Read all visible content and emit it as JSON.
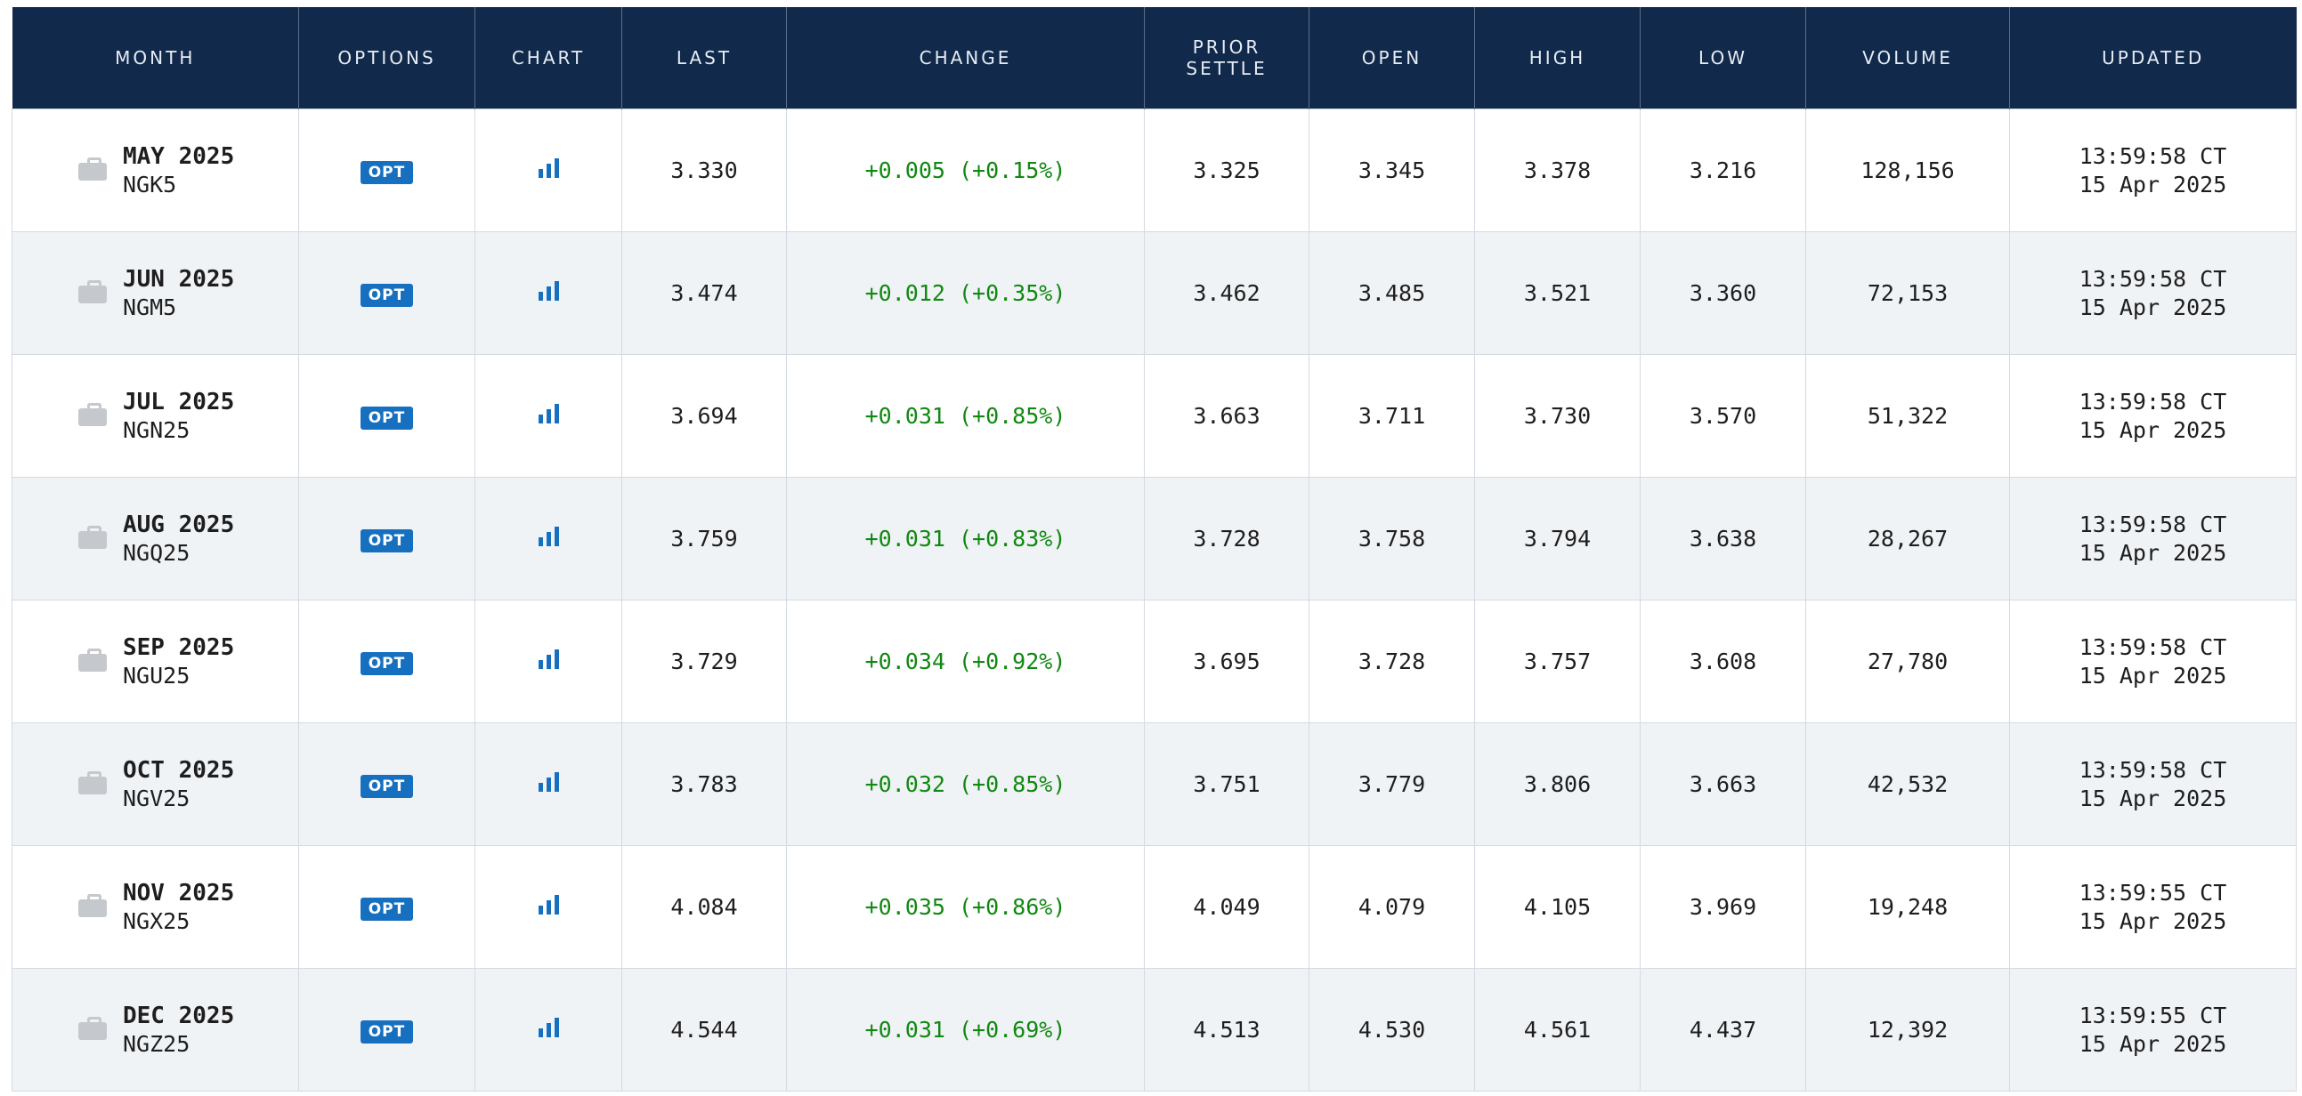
{
  "columns": {
    "month": "MONTH",
    "options": "OPTIONS",
    "chart": "CHART",
    "last": "LAST",
    "change": "CHANGE",
    "prior_settle_line1": "PRIOR",
    "prior_settle_line2": "SETTLE",
    "open": "OPEN",
    "high": "HIGH",
    "low": "LOW",
    "volume": "VOLUME",
    "updated": "UPDATED"
  },
  "icons": {
    "month": "briefcase-icon",
    "chart": "bar-chart-icon"
  },
  "colors": {
    "header_bg": "#11294a",
    "change_positive": "#118811",
    "badge_bg": "#1770bf",
    "row_alt_bg": "#f0f3f6"
  },
  "rows": [
    {
      "month": "MAY 2025",
      "code": "NGK5",
      "options": "OPT",
      "last": "3.330",
      "change": "+0.005 (+0.15%)",
      "prior_settle": "3.325",
      "open": "3.345",
      "high": "3.378",
      "low": "3.216",
      "volume": "128,156",
      "updated_time": "13:59:58 CT",
      "updated_date": "15 Apr 2025"
    },
    {
      "month": "JUN 2025",
      "code": "NGM5",
      "options": "OPT",
      "last": "3.474",
      "change": "+0.012 (+0.35%)",
      "prior_settle": "3.462",
      "open": "3.485",
      "high": "3.521",
      "low": "3.360",
      "volume": "72,153",
      "updated_time": "13:59:58 CT",
      "updated_date": "15 Apr 2025"
    },
    {
      "month": "JUL 2025",
      "code": "NGN25",
      "options": "OPT",
      "last": "3.694",
      "change": "+0.031 (+0.85%)",
      "prior_settle": "3.663",
      "open": "3.711",
      "high": "3.730",
      "low": "3.570",
      "volume": "51,322",
      "updated_time": "13:59:58 CT",
      "updated_date": "15 Apr 2025"
    },
    {
      "month": "AUG 2025",
      "code": "NGQ25",
      "options": "OPT",
      "last": "3.759",
      "change": "+0.031 (+0.83%)",
      "prior_settle": "3.728",
      "open": "3.758",
      "high": "3.794",
      "low": "3.638",
      "volume": "28,267",
      "updated_time": "13:59:58 CT",
      "updated_date": "15 Apr 2025"
    },
    {
      "month": "SEP 2025",
      "code": "NGU25",
      "options": "OPT",
      "last": "3.729",
      "change": "+0.034 (+0.92%)",
      "prior_settle": "3.695",
      "open": "3.728",
      "high": "3.757",
      "low": "3.608",
      "volume": "27,780",
      "updated_time": "13:59:58 CT",
      "updated_date": "15 Apr 2025"
    },
    {
      "month": "OCT 2025",
      "code": "NGV25",
      "options": "OPT",
      "last": "3.783",
      "change": "+0.032 (+0.85%)",
      "prior_settle": "3.751",
      "open": "3.779",
      "high": "3.806",
      "low": "3.663",
      "volume": "42,532",
      "updated_time": "13:59:58 CT",
      "updated_date": "15 Apr 2025"
    },
    {
      "month": "NOV 2025",
      "code": "NGX25",
      "options": "OPT",
      "last": "4.084",
      "change": "+0.035 (+0.86%)",
      "prior_settle": "4.049",
      "open": "4.079",
      "high": "4.105",
      "low": "3.969",
      "volume": "19,248",
      "updated_time": "13:59:55 CT",
      "updated_date": "15 Apr 2025"
    },
    {
      "month": "DEC 2025",
      "code": "NGZ25",
      "options": "OPT",
      "last": "4.544",
      "change": "+0.031 (+0.69%)",
      "prior_settle": "4.513",
      "open": "4.530",
      "high": "4.561",
      "low": "4.437",
      "volume": "12,392",
      "updated_time": "13:59:55 CT",
      "updated_date": "15 Apr 2025"
    }
  ]
}
